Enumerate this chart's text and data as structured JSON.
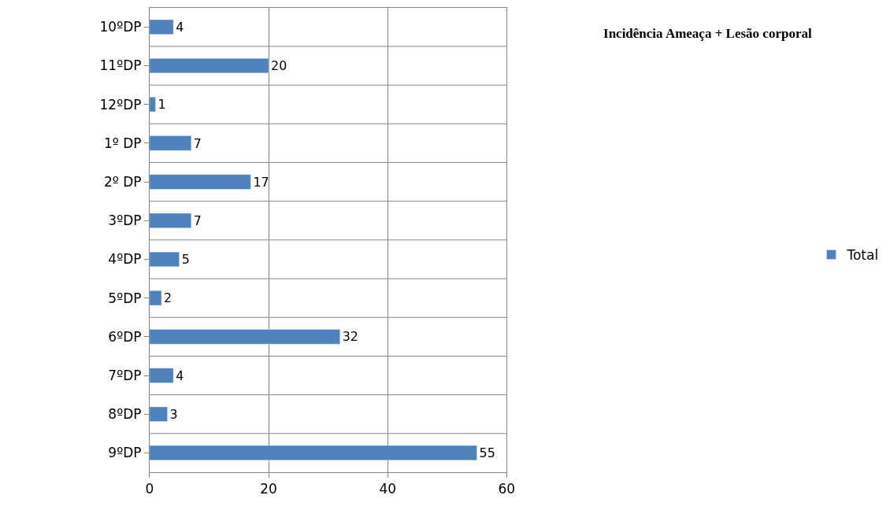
{
  "chart_data": {
    "type": "bar",
    "orientation": "horizontal",
    "title": "Incidência Ameaça + Lesão corporal",
    "categories": [
      "10ºDP",
      "11ºDP",
      "12ºDP",
      "1º DP",
      "2º DP",
      "3ºDP",
      "4ºDP",
      "5ºDP",
      "6ºDP",
      "7ºDP",
      "8ºDP",
      "9ºDP"
    ],
    "series": [
      {
        "name": "Total",
        "color": "#4f81bd",
        "values": [
          4,
          20,
          1,
          7,
          17,
          7,
          5,
          2,
          32,
          4,
          3,
          55
        ]
      }
    ],
    "xlim": [
      0,
      60
    ],
    "xticks": [
      0,
      20,
      40,
      60
    ],
    "grid": true,
    "legend": "right",
    "data_labels": true
  }
}
